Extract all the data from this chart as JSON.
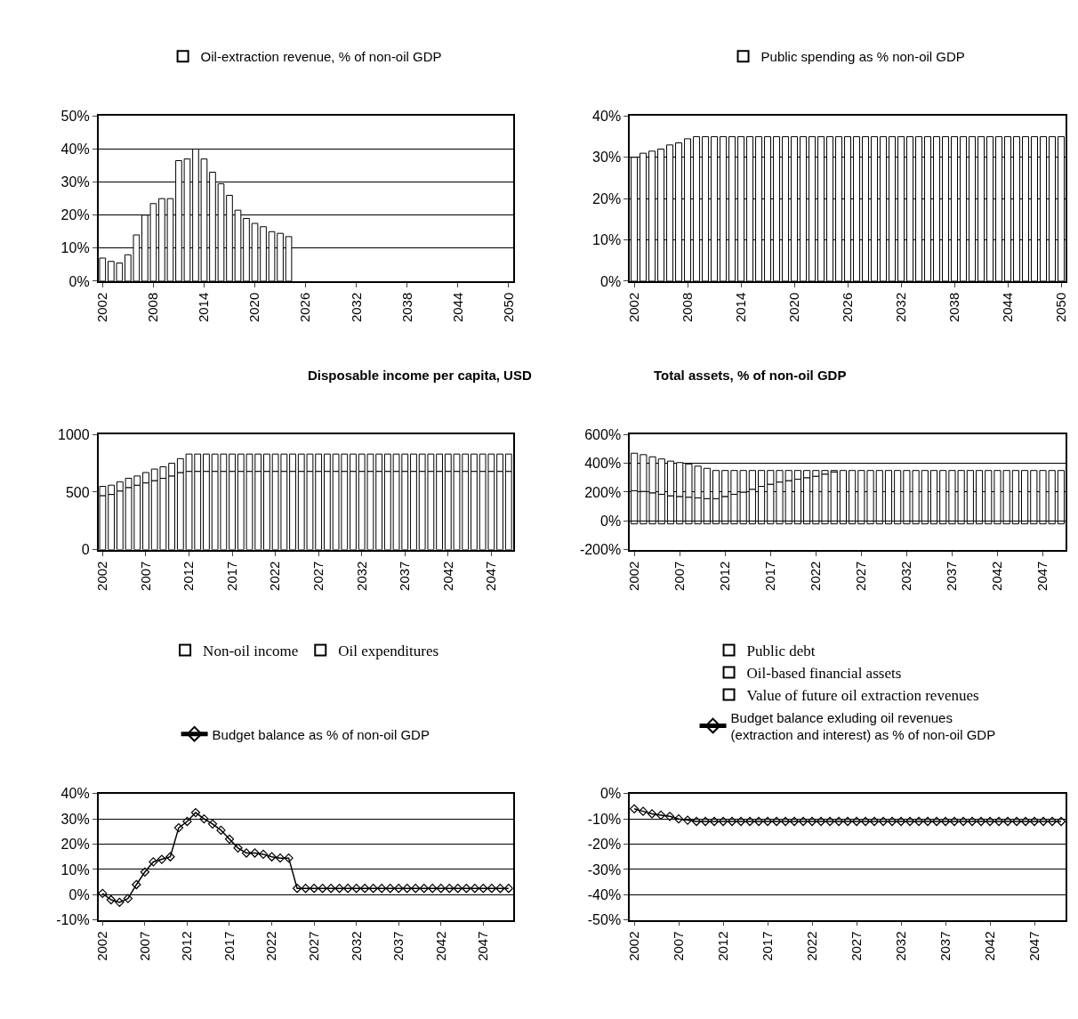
{
  "chart_data": [
    {
      "type": "bar",
      "categories": [
        "2002",
        null,
        null,
        null,
        null,
        null,
        "2008",
        null,
        null,
        null,
        null,
        null,
        "2014",
        null,
        null,
        null,
        null,
        null,
        "2020",
        null,
        null,
        null,
        null,
        null,
        "2026",
        null,
        null,
        null,
        null,
        null,
        "2032",
        null,
        null,
        null,
        null,
        null,
        "2038",
        null,
        null,
        null,
        null,
        null,
        "2044",
        null,
        null,
        null,
        null,
        null,
        "2050"
      ],
      "series": [
        {
          "name": "Oil-extraction revenue, % of non-oil GDP",
          "color": "#ffffff",
          "values": [
            7,
            6,
            5.5,
            8,
            14,
            20,
            23.5,
            25,
            25,
            36.5,
            37,
            40,
            37,
            33,
            29.5,
            26,
            21.5,
            19,
            17.5,
            16.5,
            15,
            14.5,
            13.5,
            0,
            0,
            0,
            0,
            0,
            0,
            0,
            0,
            0,
            0,
            0,
            0,
            0,
            0,
            0,
            0,
            0,
            0,
            0,
            0,
            0,
            0,
            0,
            0,
            0,
            0
          ]
        }
      ],
      "ylim": [
        0,
        50
      ],
      "yticks": [
        {
          "value": 0,
          "label": "0%"
        },
        {
          "value": 10,
          "label": "10%"
        },
        {
          "value": 20,
          "label": "20%"
        },
        {
          "value": 30,
          "label": "30%"
        },
        {
          "value": 40,
          "label": "40%"
        },
        {
          "value": 50,
          "label": "50%"
        }
      ],
      "grid": "y",
      "legend": "top"
    },
    {
      "type": "bar",
      "categories": [
        "2002",
        null,
        null,
        null,
        null,
        null,
        "2008",
        null,
        null,
        null,
        null,
        null,
        "2014",
        null,
        null,
        null,
        null,
        null,
        "2020",
        null,
        null,
        null,
        null,
        null,
        "2026",
        null,
        null,
        null,
        null,
        null,
        "2032",
        null,
        null,
        null,
        null,
        null,
        "2038",
        null,
        null,
        null,
        null,
        null,
        "2044",
        null,
        null,
        null,
        null,
        null,
        "2050"
      ],
      "series": [
        {
          "name": "Public spending as % non-oil GDP",
          "color": "#ffffff",
          "values": [
            30,
            31,
            31.5,
            32,
            33,
            33.5,
            34.5,
            35,
            35,
            35,
            35,
            35,
            35,
            35,
            35,
            35,
            35,
            35,
            35,
            35,
            35,
            35,
            35,
            35,
            35,
            35,
            35,
            35,
            35,
            35,
            35,
            35,
            35,
            35,
            35,
            35,
            35,
            35,
            35,
            35,
            35,
            35,
            35,
            35,
            35,
            35,
            35,
            35,
            35
          ]
        }
      ],
      "ylim": [
        0,
        40
      ],
      "yticks": [
        {
          "value": 0,
          "label": "0%"
        },
        {
          "value": 10,
          "label": "10%"
        },
        {
          "value": 20,
          "label": "20%"
        },
        {
          "value": 30,
          "label": "30%"
        },
        {
          "value": 40,
          "label": "40%"
        }
      ],
      "grid": "y",
      "legend": "top"
    },
    {
      "type": "bar",
      "title": "Disposable income per capita, USD",
      "stacked": true,
      "categories": [
        "2002",
        null,
        null,
        null,
        null,
        "2007",
        null,
        null,
        null,
        null,
        "2012",
        null,
        null,
        null,
        null,
        "2017",
        null,
        null,
        null,
        null,
        "2022",
        null,
        null,
        null,
        null,
        "2027",
        null,
        null,
        null,
        null,
        "2032",
        null,
        null,
        null,
        null,
        "2037",
        null,
        null,
        null,
        null,
        "2042",
        null,
        null,
        null,
        null,
        "2047",
        null,
        null
      ],
      "series": [
        {
          "name": "Non-oil income",
          "color": "#ffffff",
          "values": [
            470,
            480,
            510,
            540,
            560,
            580,
            600,
            620,
            640,
            670,
            680,
            680,
            680,
            680,
            680,
            680,
            680,
            680,
            680,
            680,
            680,
            680,
            680,
            680,
            680,
            680,
            680,
            680,
            680,
            680,
            680,
            680,
            680,
            680,
            680,
            680,
            680,
            680,
            680,
            680,
            680,
            680,
            680,
            680,
            680,
            680,
            680,
            680
          ]
        },
        {
          "name": "Oil expenditures",
          "color": "#ffffff",
          "values": [
            80,
            80,
            80,
            80,
            80,
            90,
            100,
            100,
            110,
            120,
            150,
            150,
            150,
            150,
            150,
            150,
            150,
            150,
            150,
            150,
            150,
            150,
            150,
            150,
            150,
            150,
            150,
            150,
            150,
            150,
            150,
            150,
            150,
            150,
            150,
            150,
            150,
            150,
            150,
            150,
            150,
            150,
            150,
            150,
            150,
            150,
            150,
            150
          ]
        }
      ],
      "ylim": [
        0,
        1000
      ],
      "yticks": [
        0,
        500,
        1000
      ],
      "legend": "bottom"
    },
    {
      "type": "bar",
      "title": "Total assets, % of non-oil GDP",
      "stacked": true,
      "categories": [
        "2002",
        null,
        null,
        null,
        null,
        "2007",
        null,
        null,
        null,
        null,
        "2012",
        null,
        null,
        null,
        null,
        "2017",
        null,
        null,
        null,
        null,
        "2022",
        null,
        null,
        null,
        null,
        "2027",
        null,
        null,
        null,
        null,
        "2032",
        null,
        null,
        null,
        null,
        "2037",
        null,
        null,
        null,
        null,
        "2042",
        null,
        null,
        null,
        null,
        "2047",
        null,
        null
      ],
      "series": [
        {
          "name": "Public debt",
          "color": "#ffffff",
          "values": [
            -20,
            -20,
            -20,
            -20,
            -20,
            -20,
            -20,
            -20,
            -20,
            -20,
            -20,
            -20,
            -20,
            -20,
            -20,
            -20,
            -20,
            -20,
            -20,
            -20,
            -20,
            -20,
            -20,
            -20,
            -20,
            -20,
            -20,
            -20,
            -20,
            -20,
            -20,
            -20,
            -20,
            -20,
            -20,
            -20,
            -20,
            -20,
            -20,
            -20,
            -20,
            -20,
            -20,
            -20,
            -20,
            -20,
            -20,
            -20
          ]
        },
        {
          "name": "Oil-based financial assets",
          "color": "#ffffff",
          "values": [
            210,
            205,
            195,
            185,
            175,
            170,
            165,
            160,
            155,
            155,
            170,
            185,
            200,
            220,
            240,
            255,
            270,
            280,
            290,
            300,
            310,
            325,
            340,
            350,
            350,
            350,
            350,
            350,
            350,
            350,
            350,
            350,
            350,
            350,
            350,
            350,
            350,
            350,
            350,
            350,
            350,
            350,
            350,
            350,
            350,
            350,
            350,
            350
          ]
        },
        {
          "name": "Value of future oil extraction revenues",
          "color": "#ffffff",
          "values": [
            260,
            255,
            250,
            245,
            240,
            235,
            230,
            220,
            210,
            195,
            180,
            165,
            150,
            130,
            110,
            95,
            80,
            70,
            60,
            50,
            40,
            25,
            10,
            0,
            0,
            0,
            0,
            0,
            0,
            0,
            0,
            0,
            0,
            0,
            0,
            0,
            0,
            0,
            0,
            0,
            0,
            0,
            0,
            0,
            0,
            0,
            0,
            0
          ]
        }
      ],
      "ylim": [
        -200,
        600
      ],
      "yticks": [
        {
          "value": -200,
          "label": "-200%"
        },
        {
          "value": 0,
          "label": "0%"
        },
        {
          "value": 200,
          "label": "200%"
        },
        {
          "value": 400,
          "label": "400%"
        },
        {
          "value": 600,
          "label": "600%"
        }
      ],
      "grid": "y",
      "legend": "bottom"
    },
    {
      "type": "line",
      "marker": "diamond",
      "categories": [
        "2002",
        null,
        null,
        null,
        null,
        "2007",
        null,
        null,
        null,
        null,
        "2012",
        null,
        null,
        null,
        null,
        "2017",
        null,
        null,
        null,
        null,
        "2022",
        null,
        null,
        null,
        null,
        "2027",
        null,
        null,
        null,
        null,
        "2032",
        null,
        null,
        null,
        null,
        "2037",
        null,
        null,
        null,
        null,
        "2042",
        null,
        null,
        null,
        null,
        "2047",
        null,
        null,
        null
      ],
      "series": [
        {
          "name": "Budget balance as % of non-oil GDP",
          "color": "#000000",
          "values": [
            0.5,
            -2,
            -3,
            -1.5,
            4,
            9,
            13,
            14,
            15,
            26.5,
            29,
            32.5,
            30,
            28,
            25.5,
            22,
            18.5,
            16.5,
            16.5,
            16,
            15,
            14.5,
            14.5,
            2.5,
            2.5,
            2.5,
            2.5,
            2.5,
            2.5,
            2.5,
            2.5,
            2.5,
            2.5,
            2.5,
            2.5,
            2.5,
            2.5,
            2.5,
            2.5,
            2.5,
            2.5,
            2.5,
            2.5,
            2.5,
            2.5,
            2.5,
            2.5,
            2.5,
            2.5
          ]
        }
      ],
      "ylim": [
        -10,
        40
      ],
      "yticks": [
        {
          "value": -10,
          "label": "-10%"
        },
        {
          "value": 0,
          "label": "0%"
        },
        {
          "value": 10,
          "label": "10%"
        },
        {
          "value": 20,
          "label": "20%"
        },
        {
          "value": 30,
          "label": "30%"
        },
        {
          "value": 40,
          "label": "40%"
        }
      ],
      "grid": "y",
      "legend": "top"
    },
    {
      "type": "line",
      "marker": "diamond",
      "categories": [
        "2002",
        null,
        null,
        null,
        null,
        "2007",
        null,
        null,
        null,
        null,
        "2012",
        null,
        null,
        null,
        null,
        "2017",
        null,
        null,
        null,
        null,
        "2022",
        null,
        null,
        null,
        null,
        "2027",
        null,
        null,
        null,
        null,
        "2032",
        null,
        null,
        null,
        null,
        "2037",
        null,
        null,
        null,
        null,
        "2042",
        null,
        null,
        null,
        null,
        "2047",
        null,
        null,
        null
      ],
      "series": [
        {
          "name": "Budget balance exluding oil revenues (extraction and interest) as % of non-oil GDP",
          "color": "#000000",
          "values": [
            -6,
            -7,
            -8,
            -8.5,
            -9,
            -10,
            -10.5,
            -11,
            -11,
            -11,
            -11,
            -11,
            -11,
            -11,
            -11,
            -11,
            -11,
            -11,
            -11,
            -11,
            -11,
            -11,
            -11,
            -11,
            -11,
            -11,
            -11,
            -11,
            -11,
            -11,
            -11,
            -11,
            -11,
            -11,
            -11,
            -11,
            -11,
            -11,
            -11,
            -11,
            -11,
            -11,
            -11,
            -11,
            -11,
            -11,
            -11,
            -11,
            -11
          ]
        }
      ],
      "ylim": [
        -50,
        0
      ],
      "yticks": [
        {
          "value": -50,
          "label": "-50%"
        },
        {
          "value": -40,
          "label": "-40%"
        },
        {
          "value": -30,
          "label": "-30%"
        },
        {
          "value": -20,
          "label": "-20%"
        },
        {
          "value": -10,
          "label": "-10%"
        },
        {
          "value": 0,
          "label": "0%"
        }
      ],
      "grid": "y",
      "legend": "top"
    }
  ]
}
